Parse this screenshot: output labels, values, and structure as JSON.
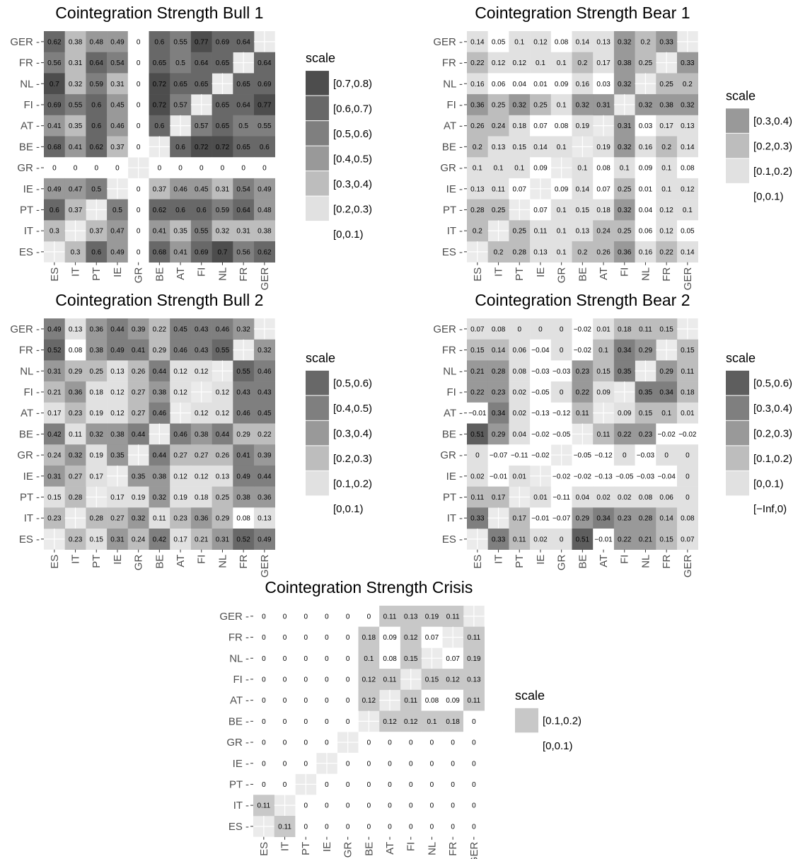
{
  "chart_data": [
    {
      "type": "heatmap",
      "title": "Cointegration Strength Bull 1",
      "x_categories": [
        "ES",
        "IT",
        "PT",
        "IE",
        "GR",
        "BE",
        "AT",
        "FI",
        "NL",
        "FR",
        "GER"
      ],
      "y_categories": [
        "GER",
        "FR",
        "NL",
        "FI",
        "AT",
        "BE",
        "GR",
        "IE",
        "PT",
        "IT",
        "ES"
      ],
      "cells": [
        [
          "0.62",
          "0.38",
          "0.48",
          "0.49",
          "0",
          "0.6",
          "0.55",
          "0.77",
          "0.69",
          "0.64",
          ""
        ],
        [
          "0.56",
          "0.31",
          "0.64",
          "0.54",
          "0",
          "0.65",
          "0.5",
          "0.64",
          "0.65",
          "",
          "0.64"
        ],
        [
          "0.7",
          "0.32",
          "0.59",
          "0.31",
          "0",
          "0.72",
          "0.65",
          "0.65",
          "",
          "0.65",
          "0.69"
        ],
        [
          "0.69",
          "0.55",
          "0.6",
          "0.45",
          "0",
          "0.72",
          "0.57",
          "",
          "0.65",
          "0.64",
          "0.77"
        ],
        [
          "0.41",
          "0.35",
          "0.6",
          "0.46",
          "0",
          "0.6",
          "",
          "0.57",
          "0.65",
          "0.5",
          "0.55"
        ],
        [
          "0.68",
          "0.41",
          "0.62",
          "0.37",
          "0",
          "",
          "0.6",
          "0.72",
          "0.72",
          "0.65",
          "0.6"
        ],
        [
          "0",
          "0",
          "0",
          "0",
          "",
          "0",
          "0",
          "0",
          "0",
          "0",
          "0"
        ],
        [
          "0.49",
          "0.47",
          "0.5",
          "",
          "0",
          "0.37",
          "0.46",
          "0.45",
          "0.31",
          "0.54",
          "0.49"
        ],
        [
          "0.6",
          "0.37",
          "",
          "0.5",
          "0",
          "0.62",
          "0.6",
          "0.6",
          "0.59",
          "0.64",
          "0.48"
        ],
        [
          "0.3",
          "",
          "0.37",
          "0.47",
          "0",
          "0.41",
          "0.35",
          "0.55",
          "0.32",
          "0.31",
          "0.38"
        ],
        [
          "",
          "0.3",
          "0.6",
          "0.49",
          "0",
          "0.68",
          "0.41",
          "0.69",
          "0.7",
          "0.56",
          "0.62"
        ]
      ],
      "legend_title": "scale",
      "legend": [
        {
          "label": "[0.7,0.8)",
          "color": "#4d4d4d"
        },
        {
          "label": "[0.6,0.7)",
          "color": "#686868"
        },
        {
          "label": "[0.5,0.6)",
          "color": "#7f7f7f"
        },
        {
          "label": "[0.4,0.5)",
          "color": "#999999"
        },
        {
          "label": "[0.3,0.4)",
          "color": "#bdbdbd"
        },
        {
          "label": "[0.2,0.3)",
          "color": "#e1e1e1"
        },
        {
          "label": "[0,0.1)",
          "color": "#ffffff"
        }
      ]
    },
    {
      "type": "heatmap",
      "title": "Cointegration Strength Bear 1",
      "x_categories": [
        "ES",
        "IT",
        "PT",
        "IE",
        "GR",
        "BE",
        "AT",
        "FI",
        "NL",
        "FR",
        "GER"
      ],
      "y_categories": [
        "GER",
        "FR",
        "NL",
        "FI",
        "AT",
        "BE",
        "GR",
        "IE",
        "PT",
        "IT",
        "ES"
      ],
      "cells": [
        [
          "0.14",
          "0.05",
          "0.1",
          "0.12",
          "0.08",
          "0.14",
          "0.13",
          "0.32",
          "0.2",
          "0.33",
          ""
        ],
        [
          "0.22",
          "0.12",
          "0.12",
          "0.1",
          "0.1",
          "0.2",
          "0.17",
          "0.38",
          "0.25",
          "",
          "0.33"
        ],
        [
          "0.16",
          "0.06",
          "0.04",
          "0.01",
          "0.09",
          "0.16",
          "0.03",
          "0.32",
          "",
          "0.25",
          "0.2"
        ],
        [
          "0.36",
          "0.25",
          "0.32",
          "0.25",
          "0.1",
          "0.32",
          "0.31",
          "",
          "0.32",
          "0.38",
          "0.32"
        ],
        [
          "0.26",
          "0.24",
          "0.18",
          "0.07",
          "0.08",
          "0.19",
          "",
          "0.31",
          "0.03",
          "0.17",
          "0.13"
        ],
        [
          "0.2",
          "0.13",
          "0.15",
          "0.14",
          "0.1",
          "",
          "0.19",
          "0.32",
          "0.16",
          "0.2",
          "0.14"
        ],
        [
          "0.1",
          "0.1",
          "0.1",
          "0.09",
          "",
          "0.1",
          "0.08",
          "0.1",
          "0.09",
          "0.1",
          "0.08"
        ],
        [
          "0.13",
          "0.11",
          "0.07",
          "",
          "0.09",
          "0.14",
          "0.07",
          "0.25",
          "0.01",
          "0.1",
          "0.12"
        ],
        [
          "0.28",
          "0.25",
          "",
          "0.07",
          "0.1",
          "0.15",
          "0.18",
          "0.32",
          "0.04",
          "0.12",
          "0.1"
        ],
        [
          "0.2",
          "",
          "0.25",
          "0.11",
          "0.1",
          "0.13",
          "0.24",
          "0.25",
          "0.06",
          "0.12",
          "0.05"
        ],
        [
          "",
          "0.2",
          "0.28",
          "0.13",
          "0.1",
          "0.2",
          "0.26",
          "0.36",
          "0.16",
          "0.22",
          "0.14"
        ]
      ],
      "legend_title": "scale",
      "legend": [
        {
          "label": "[0.3,0.4)",
          "color": "#999999"
        },
        {
          "label": "[0.2,0.3)",
          "color": "#bdbdbd"
        },
        {
          "label": "[0.1,0.2)",
          "color": "#e1e1e1"
        },
        {
          "label": "[0,0.1)",
          "color": "#ffffff"
        }
      ]
    },
    {
      "type": "heatmap",
      "title": "Cointegration Strength Bull 2",
      "x_categories": [
        "ES",
        "IT",
        "PT",
        "IE",
        "GR",
        "BE",
        "AT",
        "FI",
        "NL",
        "FR",
        "GER"
      ],
      "y_categories": [
        "GER",
        "FR",
        "NL",
        "FI",
        "AT",
        "BE",
        "GR",
        "IE",
        "PT",
        "IT",
        "ES"
      ],
      "cells": [
        [
          "0.49",
          "0.13",
          "0.36",
          "0.44",
          "0.39",
          "0.22",
          "0.45",
          "0.43",
          "0.46",
          "0.32",
          ""
        ],
        [
          "0.52",
          "0.08",
          "0.38",
          "0.49",
          "0.41",
          "0.29",
          "0.46",
          "0.43",
          "0.55",
          "",
          "0.32"
        ],
        [
          "0.31",
          "0.29",
          "0.25",
          "0.13",
          "0.26",
          "0.44",
          "0.12",
          "0.12",
          "",
          "0.55",
          "0.46"
        ],
        [
          "0.21",
          "0.36",
          "0.18",
          "0.12",
          "0.27",
          "0.38",
          "0.12",
          "",
          "0.12",
          "0.43",
          "0.43"
        ],
        [
          "0.17",
          "0.23",
          "0.19",
          "0.12",
          "0.27",
          "0.46",
          "",
          "0.12",
          "0.12",
          "0.46",
          "0.45"
        ],
        [
          "0.42",
          "0.11",
          "0.32",
          "0.38",
          "0.44",
          "",
          "0.46",
          "0.38",
          "0.44",
          "0.29",
          "0.22"
        ],
        [
          "0.24",
          "0.32",
          "0.19",
          "0.35",
          "",
          "0.44",
          "0.27",
          "0.27",
          "0.26",
          "0.41",
          "0.39"
        ],
        [
          "0.31",
          "0.27",
          "0.17",
          "",
          "0.35",
          "0.38",
          "0.12",
          "0.12",
          "0.13",
          "0.49",
          "0.44"
        ],
        [
          "0.15",
          "0.28",
          "",
          "0.17",
          "0.19",
          "0.32",
          "0.19",
          "0.18",
          "0.25",
          "0.38",
          "0.36"
        ],
        [
          "0.23",
          "",
          "0.28",
          "0.27",
          "0.32",
          "0.11",
          "0.23",
          "0.36",
          "0.29",
          "0.08",
          "0.13"
        ],
        [
          "",
          "0.23",
          "0.15",
          "0.31",
          "0.24",
          "0.42",
          "0.17",
          "0.21",
          "0.31",
          "0.52",
          "0.49"
        ]
      ],
      "legend_title": "scale",
      "legend": [
        {
          "label": "[0.5,0.6)",
          "color": "#686868"
        },
        {
          "label": "[0.4,0.5)",
          "color": "#7f7f7f"
        },
        {
          "label": "[0.3,0.4)",
          "color": "#999999"
        },
        {
          "label": "[0.2,0.3)",
          "color": "#bdbdbd"
        },
        {
          "label": "[0.1,0.2)",
          "color": "#e1e1e1"
        },
        {
          "label": "[0,0.1)",
          "color": "#ffffff"
        }
      ]
    },
    {
      "type": "heatmap",
      "title": "Cointegration Strength Bear 2",
      "x_categories": [
        "ES",
        "IT",
        "PT",
        "IE",
        "GR",
        "BE",
        "AT",
        "FI",
        "NL",
        "FR",
        "GER"
      ],
      "y_categories": [
        "GER",
        "FR",
        "NL",
        "FI",
        "AT",
        "BE",
        "GR",
        "IE",
        "PT",
        "IT",
        "ES"
      ],
      "cells": [
        [
          "0.07",
          "0.08",
          "0",
          "0",
          "0",
          "−0.02",
          "0.01",
          "0.18",
          "0.11",
          "0.15",
          ""
        ],
        [
          "0.15",
          "0.14",
          "0.06",
          "−0.04",
          "0",
          "−0.02",
          "0.1",
          "0.34",
          "0.29",
          "",
          "0.15"
        ],
        [
          "0.21",
          "0.28",
          "0.08",
          "−0.03",
          "−0.03",
          "0.23",
          "0.15",
          "0.35",
          "",
          "0.29",
          "0.11"
        ],
        [
          "0.22",
          "0.23",
          "0.02",
          "−0.05",
          "0",
          "0.22",
          "0.09",
          "",
          "0.35",
          "0.34",
          "0.18"
        ],
        [
          "−0.01",
          "0.34",
          "0.02",
          "−0.13",
          "−0.12",
          "0.11",
          "",
          "0.09",
          "0.15",
          "0.1",
          "0.01"
        ],
        [
          "0.51",
          "0.29",
          "0.04",
          "−0.02",
          "−0.05",
          "",
          "0.11",
          "0.22",
          "0.23",
          "−0.02",
          "−0.02"
        ],
        [
          "0",
          "−0.07",
          "−0.11",
          "−0.02",
          "",
          "−0.05",
          "−0.12",
          "0",
          "−0.03",
          "0",
          "0"
        ],
        [
          "0.02",
          "−0.01",
          "0.01",
          "",
          "−0.02",
          "−0.02",
          "−0.13",
          "−0.05",
          "−0.03",
          "−0.04",
          "0"
        ],
        [
          "0.11",
          "0.17",
          "",
          "0.01",
          "−0.11",
          "0.04",
          "0.02",
          "0.02",
          "0.08",
          "0.06",
          "0"
        ],
        [
          "0.33",
          "",
          "0.17",
          "−0.01",
          "−0.07",
          "0.29",
          "0.34",
          "0.23",
          "0.28",
          "0.14",
          "0.08"
        ],
        [
          "",
          "0.33",
          "0.11",
          "0.02",
          "0",
          "0.51",
          "−0.01",
          "0.22",
          "0.21",
          "0.15",
          "0.07"
        ]
      ],
      "legend_title": "scale",
      "legend": [
        {
          "label": "[0.5,0.6)",
          "color": "#5e5e5e"
        },
        {
          "label": "[0.3,0.4)",
          "color": "#7f7f7f"
        },
        {
          "label": "[0.2,0.3)",
          "color": "#999999"
        },
        {
          "label": "[0.1,0.2)",
          "color": "#bdbdbd"
        },
        {
          "label": "[0,0.1)",
          "color": "#e1e1e1"
        },
        {
          "label": "[−Inf,0)",
          "color": "#ffffff"
        }
      ]
    },
    {
      "type": "heatmap",
      "title": "Cointegration Strength Crisis",
      "x_categories": [
        "ES",
        "IT",
        "PT",
        "IE",
        "GR",
        "BE",
        "AT",
        "FI",
        "NL",
        "FR",
        "GER"
      ],
      "y_categories": [
        "GER",
        "FR",
        "NL",
        "FI",
        "AT",
        "BE",
        "GR",
        "IE",
        "PT",
        "IT",
        "ES"
      ],
      "cells": [
        [
          "0",
          "0",
          "0",
          "0",
          "0",
          "0",
          "0.11",
          "0.13",
          "0.19",
          "0.11",
          ""
        ],
        [
          "0",
          "0",
          "0",
          "0",
          "0",
          "0.18",
          "0.09",
          "0.12",
          "0.07",
          "",
          "0.11"
        ],
        [
          "0",
          "0",
          "0",
          "0",
          "0",
          "0.1",
          "0.08",
          "0.15",
          "",
          "0.07",
          "0.19"
        ],
        [
          "0",
          "0",
          "0",
          "0",
          "0",
          "0.12",
          "0.11",
          "",
          "0.15",
          "0.12",
          "0.13"
        ],
        [
          "0",
          "0",
          "0",
          "0",
          "0",
          "0.12",
          "",
          "0.11",
          "0.08",
          "0.09",
          "0.11"
        ],
        [
          "0",
          "0",
          "0",
          "0",
          "0",
          "",
          "0.12",
          "0.12",
          "0.1",
          "0.18",
          "0"
        ],
        [
          "0",
          "0",
          "0",
          "0",
          "",
          "0",
          "0",
          "0",
          "0",
          "0",
          "0"
        ],
        [
          "0",
          "0",
          "0",
          "",
          "0",
          "0",
          "0",
          "0",
          "0",
          "0",
          "0"
        ],
        [
          "0",
          "0",
          "",
          "0",
          "0",
          "0",
          "0",
          "0",
          "0",
          "0",
          "0"
        ],
        [
          "0.11",
          "",
          "0",
          "0",
          "0",
          "0",
          "0",
          "0",
          "0",
          "0",
          "0"
        ],
        [
          "",
          "0.11",
          "0",
          "0",
          "0",
          "0",
          "0",
          "0",
          "0",
          "0",
          "0"
        ]
      ],
      "legend_title": "scale",
      "legend": [
        {
          "label": "[0.1,0.2)",
          "color": "#c8c8c8"
        },
        {
          "label": "[0,0.1)",
          "color": "#ffffff"
        }
      ]
    }
  ]
}
